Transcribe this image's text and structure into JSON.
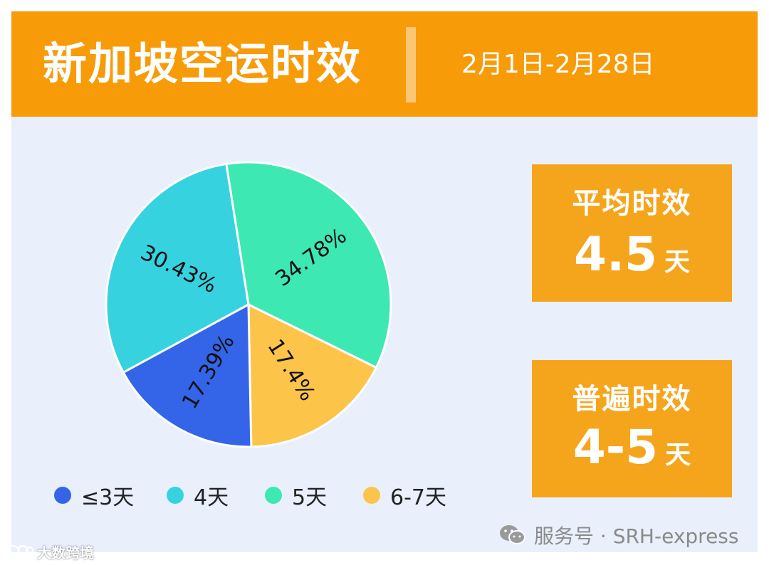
{
  "header": {
    "title": "新加坡空运时效",
    "date_range": "2月1日-2月28日"
  },
  "chart_data": {
    "type": "pie",
    "categories": [
      "≤3天",
      "4天",
      "5天",
      "6-7天"
    ],
    "values": [
      17.39,
      30.43,
      34.78,
      17.4
    ],
    "data_labels": [
      "17.39%",
      "30.43%",
      "34.78%",
      "17.4%"
    ],
    "colors": [
      "#3465e8",
      "#37d2e0",
      "#3ee8b2",
      "#fdc44a"
    ],
    "legend_position": "bottom"
  },
  "stats": {
    "average": {
      "title": "平均时效",
      "value": "4.5",
      "unit": "天"
    },
    "common": {
      "title": "普遍时效",
      "value": "4-5",
      "unit": "天"
    }
  },
  "watermark": {
    "right_text": "服务号 · SRH-express",
    "left_text": "大数跨境"
  },
  "colors": {
    "header_bg": "#f79b09",
    "panel_bg": "#e9effb",
    "card_bg": "#f5a51c"
  }
}
